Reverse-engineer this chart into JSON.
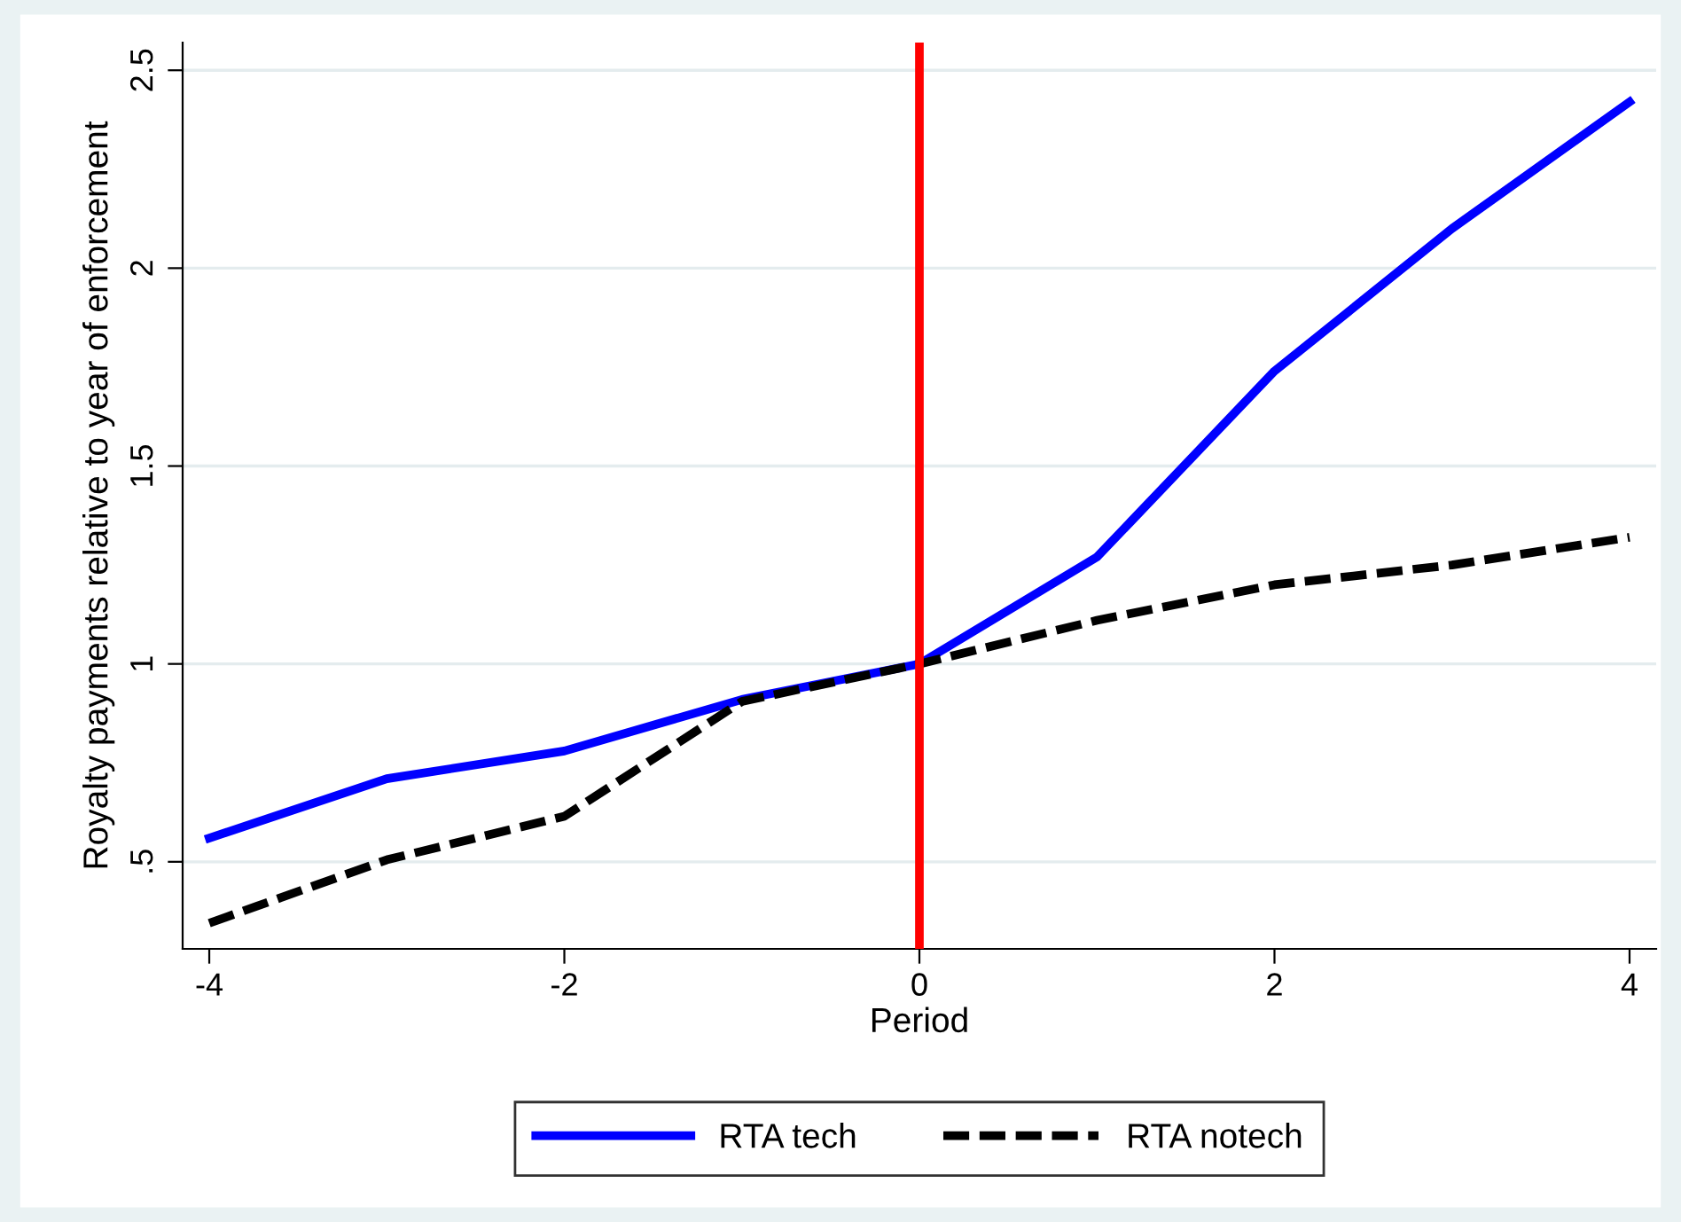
{
  "chart_data": {
    "type": "line",
    "xlabel": "Period",
    "ylabel": "Royalty payments relative to year of enforcement",
    "x": [
      -4,
      -3,
      -2,
      -1,
      0,
      1,
      2,
      3,
      4
    ],
    "series": [
      {
        "name": "RTA tech",
        "color": "#0000ff",
        "line_style": "solid",
        "values": [
          0.56,
          0.71,
          0.78,
          0.91,
          1,
          1.27,
          1.74,
          2.1,
          2.42
        ]
      },
      {
        "name": "RTA notech",
        "color": "#000000",
        "line_style": "dashed",
        "values": [
          0.345,
          0.505,
          0.615,
          0.905,
          1,
          1.11,
          1.2,
          1.25,
          1.32
        ]
      }
    ],
    "xlim": [
      -4.15,
      4.15
    ],
    "xticks": [
      -4,
      -2,
      0,
      2,
      4
    ],
    "ylim": [
      0.28,
      2.57
    ],
    "yticks": [
      {
        "value": 0.5,
        "label": ".5"
      },
      1,
      1.5,
      2,
      2.5
    ],
    "ref_lines": [
      {
        "axis": "x",
        "value": 0,
        "color": "#ff0000"
      }
    ],
    "grid": "y",
    "legend": "bottom"
  }
}
